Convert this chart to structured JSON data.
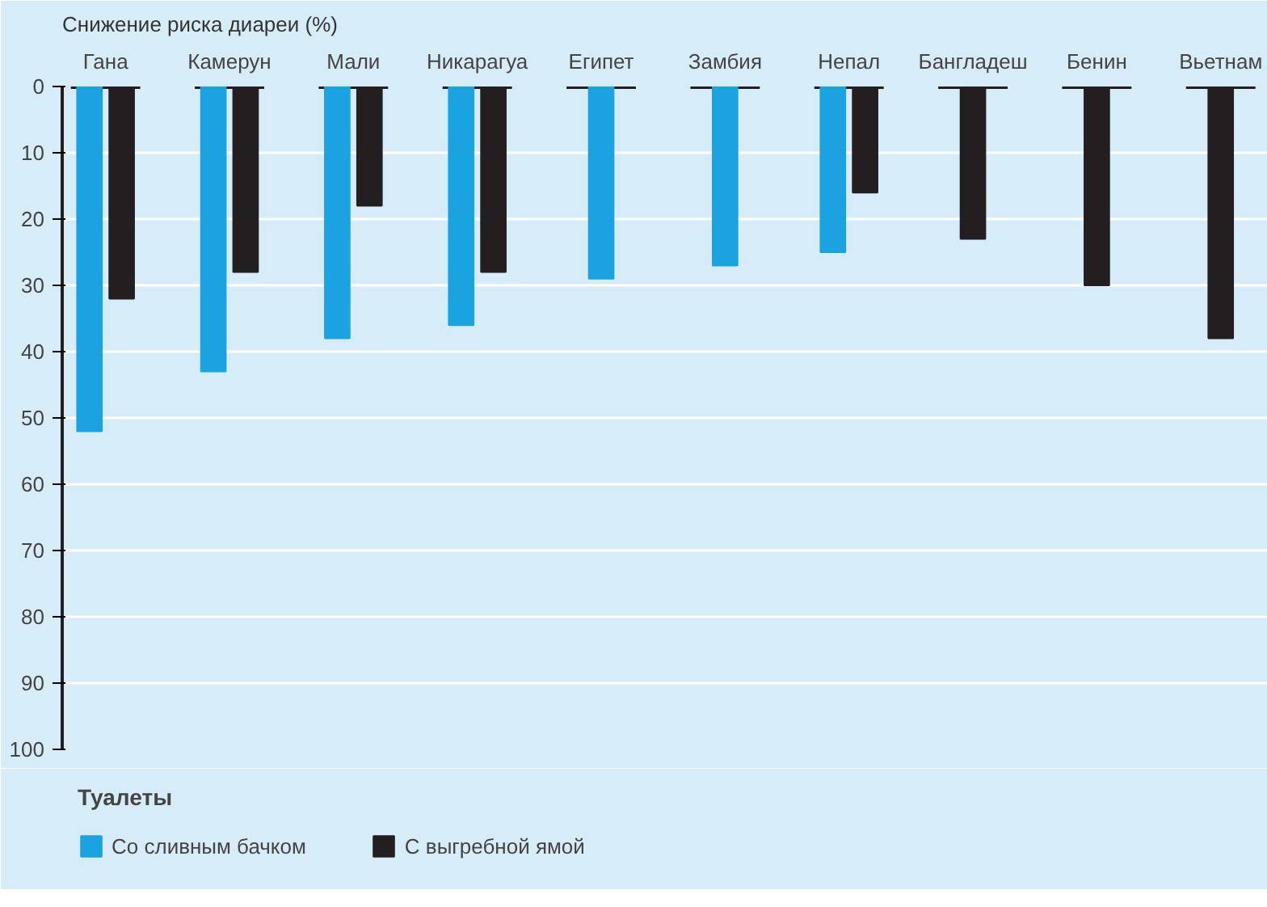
{
  "chart_data": {
    "type": "bar",
    "title": "Снижение риска диареи (%)",
    "categories": [
      "Гана",
      "Камерун",
      "Мали",
      "Никарагуа",
      "Египет",
      "Замбия",
      "Непал",
      "Бангладеш",
      "Бенин",
      "Вьетнам"
    ],
    "series": [
      {
        "name": "Со сливным бачком",
        "color": "#1ba3e1",
        "values": [
          52,
          43,
          38,
          36,
          29,
          27,
          25,
          null,
          null,
          null
        ]
      },
      {
        "name": "С выгребной ямой",
        "color": "#231f20",
        "values": [
          32,
          28,
          18,
          28,
          null,
          null,
          16,
          23,
          30,
          38
        ]
      }
    ],
    "ylim": [
      100,
      0
    ],
    "yticks": [
      0,
      10,
      20,
      30,
      40,
      50,
      60,
      70,
      80,
      90,
      100
    ],
    "grid": "y",
    "legend": "bottom",
    "legend_title": "Туалеты"
  }
}
